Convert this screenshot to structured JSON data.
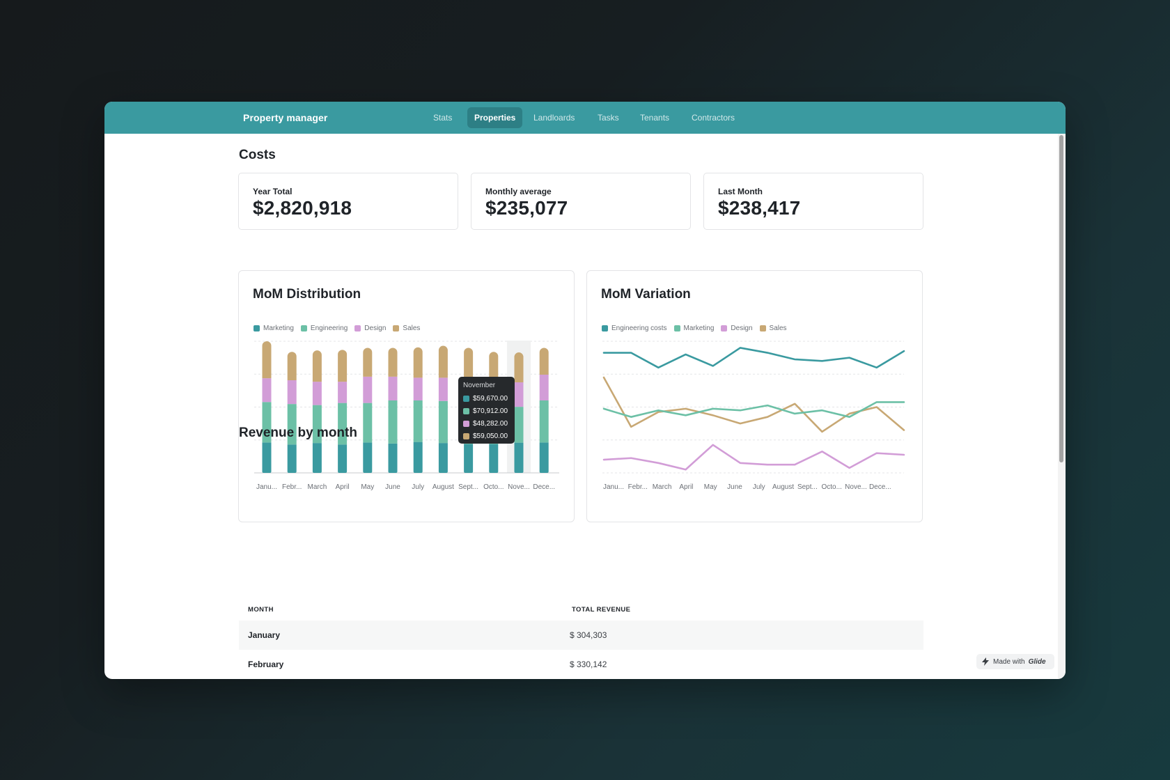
{
  "app": {
    "title": "Property manager",
    "nav": [
      {
        "label": "Stats",
        "active": false
      },
      {
        "label": "Properties",
        "active": true
      },
      {
        "label": "Landloards",
        "active": false
      },
      {
        "label": "Tasks",
        "active": false
      },
      {
        "label": "Tenants",
        "active": false
      },
      {
        "label": "Contractors",
        "active": false
      }
    ]
  },
  "costs": {
    "title": "Costs",
    "cards": [
      {
        "label": "Year Total",
        "value": "$2,820,918"
      },
      {
        "label": "Monthly average",
        "value": "$235,077"
      },
      {
        "label": "Last Month",
        "value": "$238,417"
      }
    ]
  },
  "colors": {
    "marketing": "#3a9aa0",
    "engineering": "#6cc0a6",
    "design": "#d29dd7",
    "sales": "#c8a874",
    "accent": "#3a9aa0"
  },
  "distribution": {
    "title": "MoM Distribution",
    "legend": [
      "Marketing",
      "Engineering",
      "Design",
      "Sales"
    ],
    "tooltip": {
      "title": "November",
      "rows": [
        "$59,670.00",
        "$70,912.00",
        "$48,282.00",
        "$59,050.00"
      ]
    }
  },
  "variation": {
    "title": "MoM Variation",
    "legend": [
      "Engineering costs",
      "Marketing",
      "Design",
      "Sales"
    ]
  },
  "chart_data": [
    {
      "type": "bar",
      "stacked": true,
      "title": "MoM Distribution",
      "categories": [
        "Janu...",
        "Febr...",
        "March",
        "April",
        "May",
        "June",
        "July",
        "August",
        "Sept...",
        "Octo...",
        "Nove...",
        "Dece..."
      ],
      "ylim": [
        0,
        260000
      ],
      "series": [
        {
          "name": "Marketing",
          "values": [
            60000,
            56000,
            59000,
            56000,
            60000,
            58000,
            61000,
            59000,
            57000,
            57000,
            59670,
            60000
          ]
        },
        {
          "name": "Engineering",
          "values": [
            80000,
            80000,
            75000,
            82000,
            78000,
            85000,
            82000,
            83000,
            80000,
            78000,
            70912,
            83000
          ]
        },
        {
          "name": "Design",
          "values": [
            47000,
            47000,
            46000,
            42000,
            52000,
            47000,
            45000,
            46000,
            45000,
            44000,
            48282,
            51000
          ]
        },
        {
          "name": "Sales",
          "values": [
            73000,
            56000,
            62000,
            63000,
            57000,
            57000,
            60000,
            63000,
            65000,
            60000,
            59050,
            53000
          ]
        }
      ],
      "grid": true,
      "legend_position": "top-left"
    },
    {
      "type": "line",
      "title": "MoM Variation",
      "categories": [
        "Janu...",
        "Febr...",
        "March",
        "April",
        "May",
        "June",
        "July",
        "August",
        "Sept...",
        "Octo...",
        "Nove...",
        "Dece..."
      ],
      "ylim": [
        30000,
        110000
      ],
      "series": [
        {
          "name": "Engineering costs",
          "values": [
            103000,
            103000,
            94000,
            102000,
            95000,
            106000,
            103000,
            99000,
            98000,
            100000,
            94000,
            104000
          ]
        },
        {
          "name": "Marketing",
          "values": [
            69000,
            64000,
            68000,
            65000,
            69000,
            68000,
            71000,
            66000,
            68000,
            64000,
            73000,
            73000
          ]
        },
        {
          "name": "Design",
          "values": [
            38000,
            39000,
            36000,
            32000,
            47000,
            36000,
            35000,
            35000,
            43000,
            33000,
            42000,
            41000
          ]
        },
        {
          "name": "Sales",
          "values": [
            88000,
            58000,
            67000,
            69000,
            65000,
            60000,
            64000,
            72000,
            55000,
            66000,
            70000,
            56000
          ]
        }
      ],
      "grid": true,
      "legend_position": "top-left"
    }
  ],
  "revenue": {
    "title": "Revenue by month",
    "columns": [
      "MONTH",
      "TOTAL REVENUE"
    ],
    "rows": [
      {
        "month": "January",
        "revenue": "$ 304,303"
      },
      {
        "month": "February",
        "revenue": "$ 330,142"
      }
    ]
  },
  "badge": {
    "prefix": "Made with",
    "brand": "Glide"
  }
}
